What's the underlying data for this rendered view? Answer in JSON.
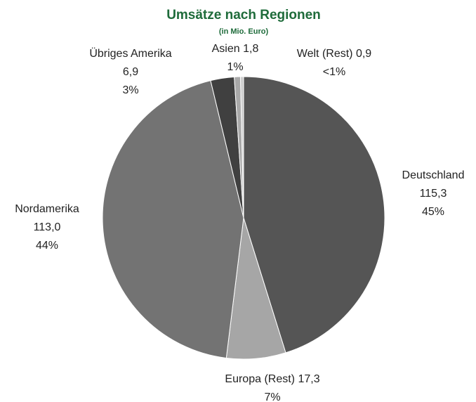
{
  "chart_data": {
    "type": "pie",
    "title": "Umsätze nach Regionen",
    "subtitle": "(in Mio. Euro)",
    "categories": [
      "Deutschland",
      "Europa (Rest)",
      "Nordamerika",
      "Übriges Amerika",
      "Asien",
      "Welt (Rest)"
    ],
    "values": [
      115.3,
      17.3,
      113.0,
      6.9,
      1.8,
      0.9
    ],
    "value_labels": [
      "115,3",
      "17,3",
      "113,0",
      "6,9",
      "1,8",
      "0,9"
    ],
    "percent_labels": [
      "45%",
      "7%",
      "44%",
      "3%",
      "1%",
      "<1%"
    ],
    "colors": [
      "#555555",
      "#a6a6a6",
      "#737373",
      "#404040",
      "#a9a9a9",
      "#cccccc"
    ]
  }
}
